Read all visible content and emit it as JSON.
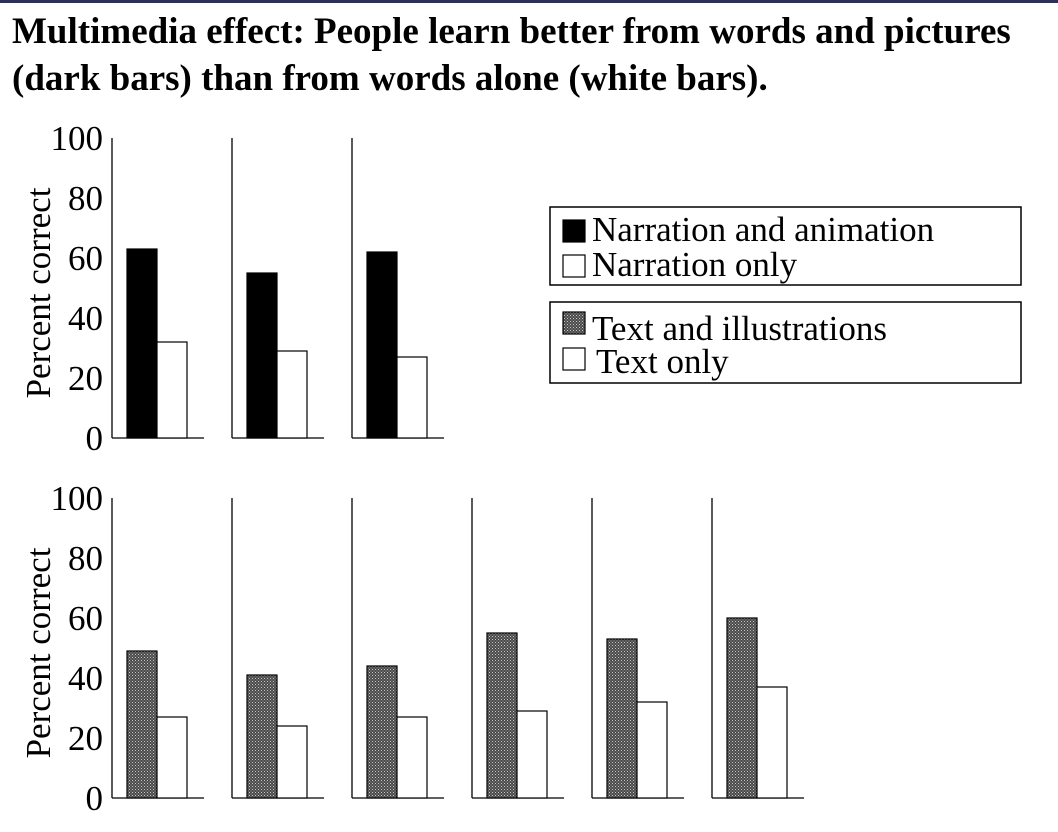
{
  "title": {
    "line1": "Multimedia effect: People learn better from words and pictures",
    "line2": "(dark bars) than from words alone (white bars)."
  },
  "colors": {
    "narration_and_animation": "#000000",
    "narration_only": "#ffffff",
    "text_and_illustrations": "#6e6e6e",
    "text_only": "#ffffff"
  },
  "legend": {
    "box1": [
      "Narration and animation",
      "Narration only"
    ],
    "box2": [
      "Text and illustrations",
      "Text only"
    ]
  },
  "chart_data": [
    {
      "type": "bar",
      "ylabel": "Percent correct",
      "yticks": [
        "100",
        "80",
        "60",
        "40",
        "20",
        "0"
      ],
      "ylim": [
        0,
        100
      ],
      "grid": false,
      "series": [
        {
          "name": "Narration and animation",
          "values": [
            63,
            55,
            62
          ]
        },
        {
          "name": "Narration only",
          "values": [
            32,
            29,
            27
          ]
        }
      ]
    },
    {
      "type": "bar",
      "ylabel": "Percent correct",
      "yticks": [
        "100",
        "80",
        "60",
        "40",
        "20",
        "0"
      ],
      "ylim": [
        0,
        100
      ],
      "grid": false,
      "series": [
        {
          "name": "Text and illustrations",
          "values": [
            49,
            41,
            44,
            55,
            53,
            60
          ]
        },
        {
          "name": "Text only",
          "values": [
            27,
            24,
            27,
            29,
            32,
            37
          ]
        }
      ]
    }
  ]
}
